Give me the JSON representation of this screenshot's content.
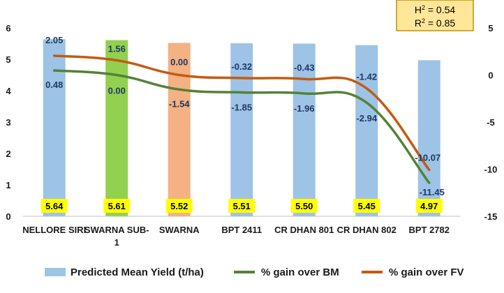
{
  "chart_data": {
    "type": "bar",
    "categories": [
      "NELLORE SIRI",
      "SWARNA SUB-1",
      "SWARNA",
      "BPT 2411",
      "CR DHAN 801",
      "CR DHAN 802",
      "BPT 2782"
    ],
    "category_lines": [
      [
        "NELLORE SIRI"
      ],
      [
        "SWARNA SUB-",
        "1"
      ],
      [
        "SWARNA"
      ],
      [
        "BPT 2411"
      ],
      [
        "CR DHAN 801"
      ],
      [
        "CR DHAN 802"
      ],
      [
        "BPT 2782"
      ]
    ],
    "series": [
      {
        "name": "Predicted Mean Yield (t/ha)",
        "type": "bar",
        "axis": "left",
        "values": [
          5.64,
          5.61,
          5.52,
          5.51,
          5.5,
          5.45,
          4.97
        ]
      },
      {
        "name": "% gain over BM",
        "type": "line",
        "axis": "right",
        "values": [
          0.48,
          0.0,
          -1.54,
          -1.85,
          -1.96,
          -2.94,
          -11.45
        ]
      },
      {
        "name": "% gain over FV",
        "type": "line",
        "axis": "right",
        "values": [
          2.05,
          1.56,
          0.0,
          -0.32,
          -0.43,
          -1.42,
          -10.07
        ]
      }
    ],
    "bar_labels": [
      "5.64",
      "5.61",
      "5.52",
      "5.51",
      "5.50",
      "5.45",
      "4.97"
    ],
    "bm_labels": [
      "0.48",
      "0.00",
      "-1.54",
      "-1.85",
      "-1.96",
      "-2.94",
      "-11.45"
    ],
    "fv_labels": [
      "2.05",
      "1.56",
      "0.00",
      "-0.32",
      "-0.43",
      "-1.42",
      "-10.07"
    ],
    "y_left": {
      "min": 0,
      "max": 6,
      "ticks": [
        "0",
        "1",
        "2",
        "3",
        "4",
        "5",
        "6"
      ]
    },
    "y_right": {
      "min": -15,
      "max": 5,
      "ticks": [
        "5",
        "0",
        "-5",
        "-10",
        "-15"
      ]
    },
    "grid": false,
    "legend_position": "bottom",
    "stats_box": {
      "h2": "0.54",
      "r2": "0.85"
    },
    "colors": {
      "bar_default": "#9DC3E6",
      "bar_highlight_1": "#92D050",
      "bar_highlight_2": "#F4B183",
      "label_box": "#FFFF00",
      "line_bm": "#548235",
      "line_fv": "#C55A11",
      "stats_box_fill": "#FFE699",
      "stats_box_border": "#BF9000"
    },
    "bar_colors": [
      "#9DC3E6",
      "#92D050",
      "#F4B183",
      "#9DC3E6",
      "#9DC3E6",
      "#9DC3E6",
      "#9DC3E6"
    ]
  }
}
